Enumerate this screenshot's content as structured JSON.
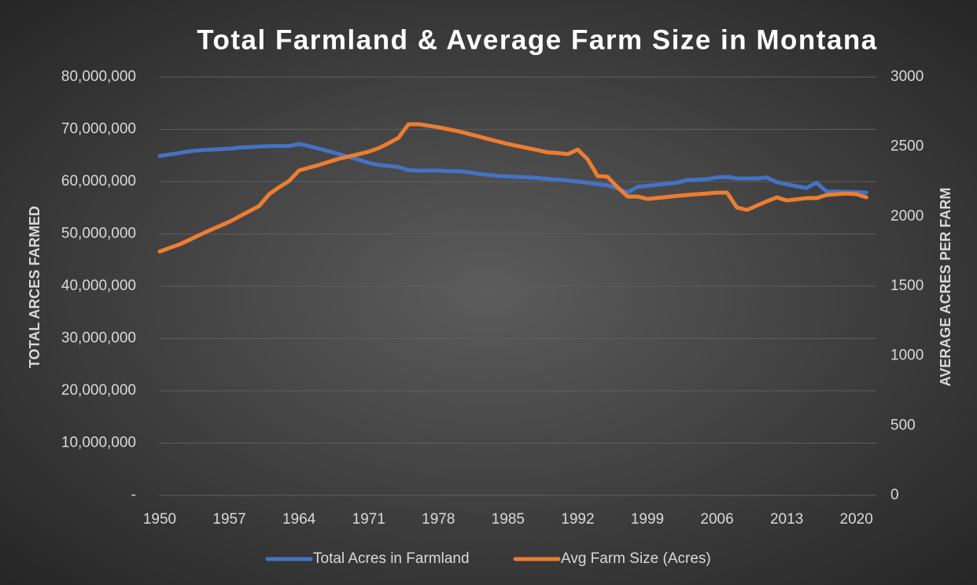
{
  "chart_data": {
    "type": "line",
    "title": "Total Farmland & Average Farm Size in Montana",
    "y_label": "TOTAL ARCES FARMED",
    "y2_label": "AVERAGE ACRES PER FARM",
    "x": [
      1950,
      1951,
      1952,
      1953,
      1954,
      1955,
      1956,
      1957,
      1958,
      1959,
      1960,
      1961,
      1962,
      1963,
      1964,
      1965,
      1966,
      1967,
      1968,
      1969,
      1970,
      1971,
      1972,
      1973,
      1974,
      1975,
      1976,
      1977,
      1978,
      1979,
      1980,
      1981,
      1982,
      1983,
      1984,
      1985,
      1986,
      1987,
      1988,
      1989,
      1990,
      1991,
      1992,
      1993,
      1994,
      1995,
      1996,
      1997,
      1998,
      1999,
      2000,
      2001,
      2002,
      2003,
      2004,
      2005,
      2006,
      2007,
      2008,
      2009,
      2010,
      2011,
      2012,
      2013,
      2014,
      2015,
      2016,
      2017,
      2018,
      2019,
      2020,
      2021
    ],
    "xlim": [
      1950,
      2022
    ],
    "xticks": [
      1950,
      1957,
      1964,
      1971,
      1978,
      1985,
      1992,
      1999,
      2006,
      2013,
      2020
    ],
    "ylim": [
      0,
      80000000
    ],
    "yticks": [
      {
        "value": 0,
        "label": "-"
      },
      {
        "value": 10000000,
        "label": "10,000,000"
      },
      {
        "value": 20000000,
        "label": "20,000,000"
      },
      {
        "value": 30000000,
        "label": "30,000,000"
      },
      {
        "value": 40000000,
        "label": "40,000,000"
      },
      {
        "value": 50000000,
        "label": "50,000,000"
      },
      {
        "value": 60000000,
        "label": "60,000,000"
      },
      {
        "value": 70000000,
        "label": "70,000,000"
      },
      {
        "value": 80000000,
        "label": "80,000,000"
      }
    ],
    "y2lim": [
      0,
      3000
    ],
    "y2ticks": [
      0,
      500,
      1000,
      1500,
      2000,
      2500,
      3000
    ],
    "grid": true,
    "legend": "bottom",
    "series": [
      {
        "name": "Total Acres in Farmland",
        "color": "#4472c4",
        "values": [
          64900000,
          65200000,
          65500000,
          65800000,
          66000000,
          66100000,
          66200000,
          66300000,
          66500000,
          66600000,
          66700000,
          66800000,
          66800000,
          66800000,
          67200000,
          66800000,
          66300000,
          65800000,
          65300000,
          64700000,
          64200000,
          63600000,
          63200000,
          63000000,
          62800000,
          62200000,
          62100000,
          62100000,
          62100000,
          62000000,
          62000000,
          61800000,
          61500000,
          61300000,
          61100000,
          61000000,
          60900000,
          60800000,
          60700000,
          60500000,
          60400000,
          60200000,
          60000000,
          59800000,
          59500000,
          59300000,
          58700000,
          57900000,
          59000000,
          59200000,
          59400000,
          59600000,
          59800000,
          60300000,
          60400000,
          60500000,
          60800000,
          60900000,
          60600000,
          60600000,
          60600000,
          60800000,
          59900000,
          59500000,
          59100000,
          58800000,
          59800000,
          58100000,
          58100000,
          58000000,
          58000000,
          57900000
        ]
      },
      {
        "name": "Avg Farm Size (Acres)",
        "color": "#ed7d31",
        "axis": "y2",
        "values": [
          1748,
          1775,
          1800,
          1833,
          1867,
          1900,
          1931,
          1962,
          2000,
          2038,
          2075,
          2160,
          2210,
          2255,
          2330,
          2350,
          2370,
          2392,
          2414,
          2430,
          2447,
          2465,
          2490,
          2525,
          2565,
          2662,
          2662,
          2651,
          2640,
          2625,
          2611,
          2593,
          2575,
          2556,
          2538,
          2520,
          2505,
          2490,
          2475,
          2460,
          2455,
          2447,
          2480,
          2410,
          2290,
          2285,
          2210,
          2143,
          2143,
          2126,
          2133,
          2140,
          2148,
          2154,
          2160,
          2165,
          2171,
          2171,
          2064,
          2047,
          2078,
          2109,
          2137,
          2115,
          2123,
          2132,
          2132,
          2154,
          2160,
          2165,
          2160,
          2137
        ]
      }
    ]
  }
}
